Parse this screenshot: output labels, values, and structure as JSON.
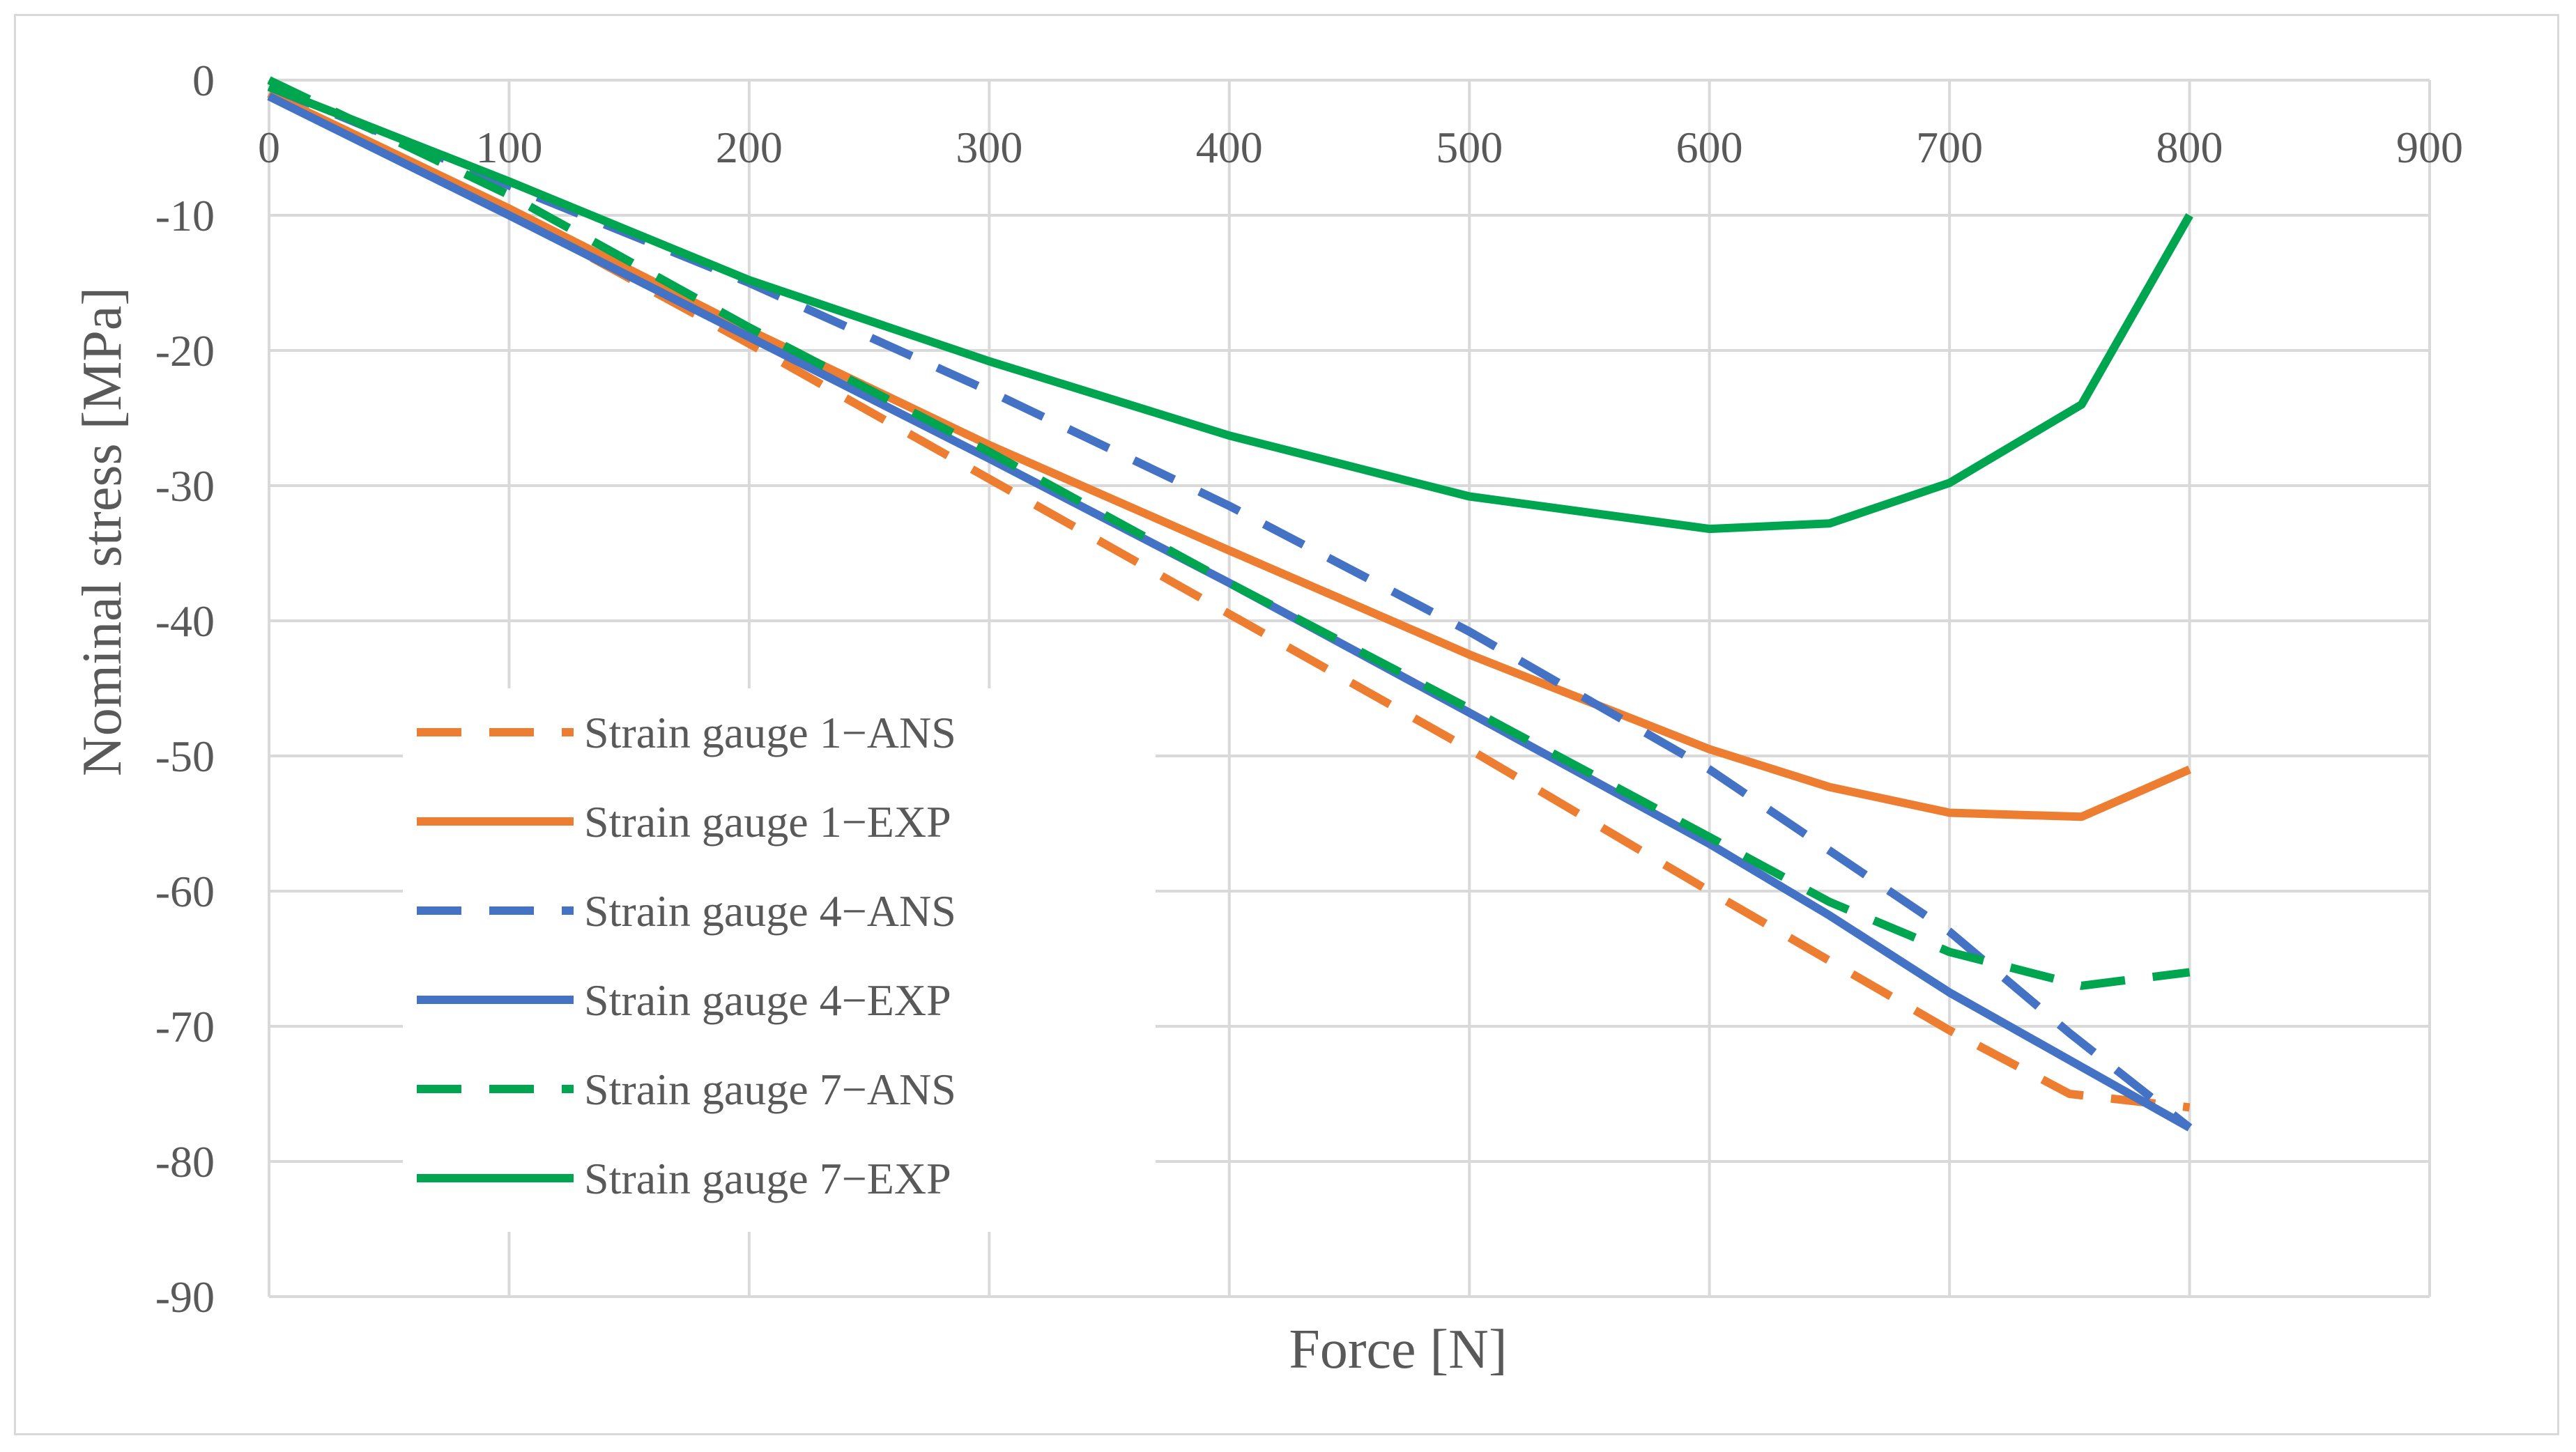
{
  "chart_data": {
    "type": "line",
    "title": "",
    "xlabel": "Force [N]",
    "ylabel": "Nominal stress [MPa]",
    "xlim": [
      0,
      900
    ],
    "ylim": [
      -90,
      0
    ],
    "xticks": [
      "0",
      "100",
      "200",
      "300",
      "400",
      "500",
      "600",
      "700",
      "800",
      "900"
    ],
    "yticks": [
      "0",
      "-10",
      "-20",
      "-30",
      "-40",
      "-50",
      "-60",
      "-70",
      "-80",
      "-90"
    ],
    "grid": true,
    "legend_position": "left-middle",
    "series": [
      {
        "name": "Strain gauge 1−ANS",
        "color": "#ED7D31",
        "style": "dashed",
        "x": [
          0,
          100,
          200,
          300,
          400,
          500,
          600,
          700,
          750,
          800
        ],
        "y": [
          -1.0,
          -9.8,
          -19.5,
          -29.5,
          -39.5,
          -49.5,
          -60.0,
          -70.3,
          -75.0,
          -76.0
        ]
      },
      {
        "name": "Strain gauge 1−EXP",
        "color": "#ED7D31",
        "style": "solid",
        "x": [
          0,
          100,
          200,
          300,
          400,
          500,
          600,
          650,
          700,
          755,
          800
        ],
        "y": [
          -1.0,
          -9.5,
          -18.5,
          -27.0,
          -34.8,
          -42.5,
          -49.5,
          -52.3,
          -54.2,
          -54.5,
          -51.0
        ]
      },
      {
        "name": "Strain gauge 4−ANS",
        "color": "#4472C4",
        "style": "dashed",
        "x": [
          0,
          100,
          200,
          300,
          400,
          500,
          600,
          700,
          750,
          800
        ],
        "y": [
          -0.5,
          -7.8,
          -15.0,
          -23.0,
          -31.5,
          -40.8,
          -51.0,
          -63.0,
          -70.5,
          -77.5
        ]
      },
      {
        "name": "Strain gauge 4−EXP",
        "color": "#4472C4",
        "style": "solid",
        "x": [
          0,
          100,
          200,
          300,
          400,
          500,
          600,
          650,
          700,
          750,
          800
        ],
        "y": [
          -1.2,
          -10.0,
          -19.0,
          -28.0,
          -37.2,
          -46.8,
          -56.5,
          -61.8,
          -67.5,
          -72.5,
          -77.5
        ]
      },
      {
        "name": "Strain gauge 7−ANS",
        "color": "#00A550",
        "style": "dashed",
        "x": [
          0,
          100,
          200,
          300,
          400,
          500,
          600,
          650,
          700,
          755,
          800
        ],
        "y": [
          0.0,
          -8.5,
          -18.3,
          -27.5,
          -37.2,
          -46.5,
          -56.0,
          -60.8,
          -64.5,
          -67.0,
          -66.0
        ]
      },
      {
        "name": "Strain gauge 7−EXP",
        "color": "#00A550",
        "style": "solid",
        "x": [
          0,
          100,
          200,
          300,
          400,
          500,
          600,
          650,
          700,
          755,
          800
        ],
        "y": [
          -0.5,
          -7.5,
          -14.8,
          -20.8,
          -26.3,
          -30.8,
          -33.2,
          -32.8,
          -29.8,
          -24.0,
          -10.0
        ]
      }
    ]
  }
}
